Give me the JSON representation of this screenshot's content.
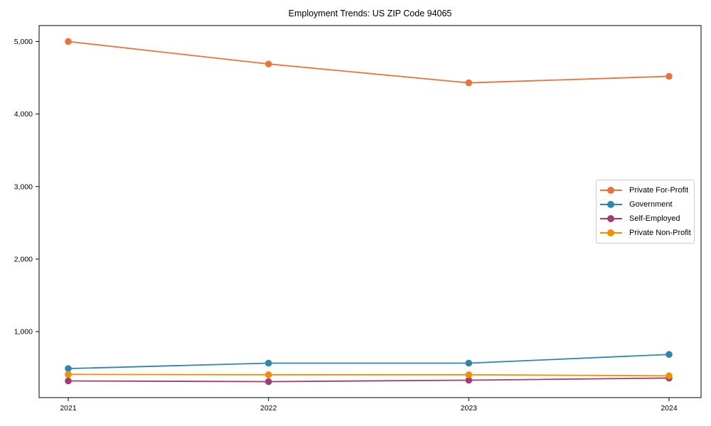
{
  "chart_data": {
    "type": "line",
    "title": "Employment Trends: US ZIP Code 94065",
    "categories": [
      "2021",
      "2022",
      "2023",
      "2024"
    ],
    "series": [
      {
        "name": "Private For-Profit",
        "color": "#E8743B",
        "values": [
          5000,
          4690,
          4430,
          4520
        ]
      },
      {
        "name": "Government",
        "color": "#2E86AB",
        "values": [
          490,
          565,
          565,
          685
        ]
      },
      {
        "name": "Self-Employed",
        "color": "#A23B72",
        "values": [
          320,
          310,
          330,
          360
        ]
      },
      {
        "name": "Private Non-Profit",
        "color": "#F18F01",
        "values": [
          410,
          405,
          405,
          390
        ]
      }
    ],
    "xlabel": "",
    "ylabel": "",
    "ylim": [
      90,
      5220
    ],
    "yticks": [
      1000,
      2000,
      3000,
      4000,
      5000
    ],
    "ytick_labels": [
      "1,000",
      "2,000",
      "3,000",
      "4,000",
      "5,000"
    ],
    "grid": false,
    "legend_position": "center-right",
    "marker": "circle",
    "line_width": 1.8,
    "marker_radius": 4.8
  }
}
